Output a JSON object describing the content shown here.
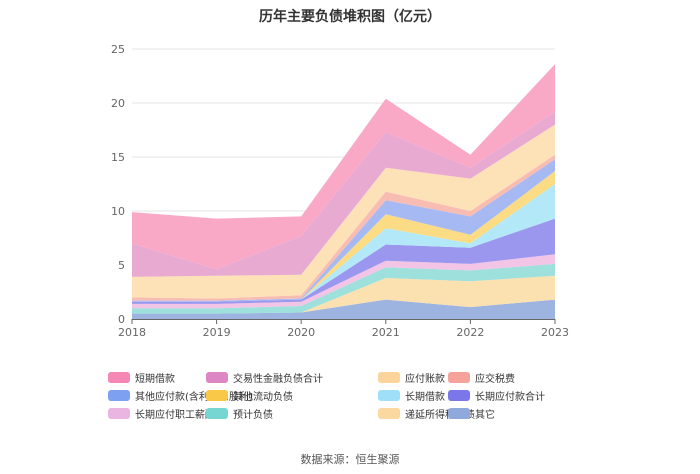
{
  "chart_data": {
    "type": "area",
    "stacked": true,
    "title": "历年主要负债堆积图（亿元）",
    "x": [
      "2018",
      "2019",
      "2020",
      "2021",
      "2022",
      "2023"
    ],
    "ylim": [
      0,
      25
    ],
    "yticks": [
      "0",
      "5",
      "10",
      "15",
      "20",
      "25"
    ],
    "grid": true,
    "legend_position": "bottom",
    "series": [
      {
        "name": "其它",
        "color": "#9db4e0",
        "values": [
          0.5,
          0.5,
          0.6,
          1.8,
          1.1,
          1.8
        ]
      },
      {
        "name": "递延所得税负债",
        "color": "#fbe0b0",
        "values": [
          0.0,
          0.0,
          0.0,
          2.0,
          2.4,
          2.2
        ]
      },
      {
        "name": "预计负债",
        "color": "#9ee0dc",
        "values": [
          0.5,
          0.5,
          0.6,
          1.0,
          1.0,
          1.1
        ]
      },
      {
        "name": "长期应付职工薪酬",
        "color": "#f2c4e6",
        "values": [
          0.4,
          0.4,
          0.4,
          0.6,
          0.6,
          0.9
        ]
      },
      {
        "name": "长期应付款合计",
        "color": "#9b97ee",
        "values": [
          0.2,
          0.2,
          0.2,
          1.5,
          1.5,
          3.3
        ]
      },
      {
        "name": "长期借款",
        "color": "#b3e8f8",
        "values": [
          0.0,
          0.0,
          0.0,
          1.5,
          0.4,
          3.2
        ]
      },
      {
        "name": "其他流动负债",
        "color": "#fbdc84",
        "values": [
          0.0,
          0.0,
          0.0,
          1.3,
          0.8,
          1.2
        ]
      },
      {
        "name": "其他应付款(含利息和股利)",
        "color": "#a6b9f2",
        "values": [
          0.1,
          0.1,
          0.1,
          1.3,
          1.7,
          1.1
        ]
      },
      {
        "name": "应交税费",
        "color": "#f8bcb3",
        "values": [
          0.3,
          0.2,
          0.3,
          0.8,
          0.5,
          0.4
        ]
      },
      {
        "name": "应付账款",
        "color": "#fde2b8",
        "values": [
          1.9,
          2.1,
          1.9,
          2.2,
          3.0,
          2.8
        ]
      },
      {
        "name": "交易性金融负债合计",
        "color": "#e9aad2",
        "values": [
          3.1,
          0.6,
          3.6,
          3.3,
          1.0,
          1.2
        ]
      },
      {
        "name": "短期借款",
        "color": "#f9a8c6",
        "values": [
          2.9,
          4.7,
          1.8,
          3.1,
          1.2,
          4.4
        ]
      }
    ]
  },
  "legend": [
    {
      "label": "短期借款",
      "color": "#f487b4"
    },
    {
      "label": "交易性金融负债合计",
      "color": "#dd86c4"
    },
    {
      "label": "应付账款",
      "color": "#fbd39b"
    },
    {
      "label": "应交税费",
      "color": "#f5a39a"
    },
    {
      "label": "其他应付款(含利息和股利)",
      "color": "#7ea0f0"
    },
    {
      "label": "其他流动负债",
      "color": "#f8c846"
    },
    {
      "label": "长期借款",
      "color": "#a0dff8"
    },
    {
      "label": "长期应付款合计",
      "color": "#7b76ea"
    },
    {
      "label": "长期应付职工薪酬",
      "color": "#eab5e1"
    },
    {
      "label": "预计负债",
      "color": "#76d6d2"
    },
    {
      "label": "递延所得税负债",
      "color": "#fbd99e"
    },
    {
      "label": "其它",
      "color": "#8fa9dc"
    }
  ],
  "source": "数据来源：恒生聚源"
}
